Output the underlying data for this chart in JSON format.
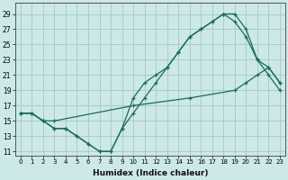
{
  "xlabel": "Humidex (Indice chaleur)",
  "bg_color": "#cce8e8",
  "grid_color": "#aacccc",
  "line_color": "#1a6b5a",
  "xlim": [
    -0.5,
    23.5
  ],
  "ylim": [
    10.5,
    30.5
  ],
  "xticks": [
    0,
    1,
    2,
    3,
    4,
    5,
    6,
    7,
    8,
    9,
    10,
    11,
    12,
    13,
    14,
    15,
    16,
    17,
    18,
    19,
    20,
    21,
    22,
    23
  ],
  "yticks": [
    11,
    13,
    15,
    17,
    19,
    21,
    23,
    25,
    27,
    29
  ],
  "line1_x": [
    0,
    1,
    2,
    3,
    4,
    5,
    6,
    7,
    8,
    9,
    10,
    11,
    12,
    13,
    14,
    15,
    16,
    17,
    18,
    19,
    20,
    21,
    22,
    23
  ],
  "line1_y": [
    16,
    16,
    15,
    14,
    14,
    13,
    12,
    11,
    11,
    14,
    18,
    20,
    21,
    22,
    24,
    26,
    27,
    28,
    29,
    29,
    27,
    23,
    21,
    19
  ],
  "line2_x": [
    0,
    1,
    2,
    3,
    4,
    5,
    6,
    7,
    8,
    9,
    10,
    11,
    12,
    13,
    14,
    15,
    16,
    17,
    18,
    19,
    20,
    21,
    22,
    23
  ],
  "line2_y": [
    16,
    16,
    15,
    14,
    14,
    13,
    12,
    11,
    11,
    14,
    16,
    18,
    20,
    22,
    24,
    26,
    27,
    28,
    29,
    28,
    26,
    23,
    22,
    20
  ],
  "line3_x": [
    0,
    1,
    2,
    3,
    10,
    15,
    19,
    20,
    21,
    22,
    23
  ],
  "line3_y": [
    16,
    16,
    15,
    15,
    17,
    18,
    19,
    20,
    21,
    22,
    20
  ]
}
